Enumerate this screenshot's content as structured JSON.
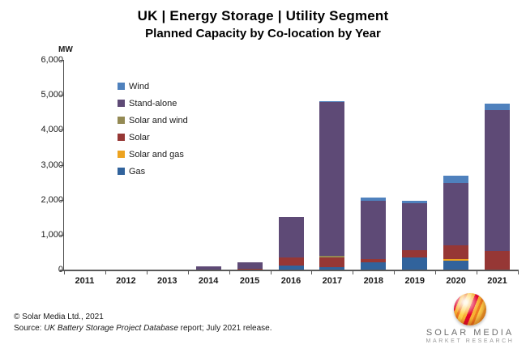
{
  "header": {
    "title": "UK | Energy Storage | Utility Segment",
    "subtitle": "Planned Capacity by Co-location by Year"
  },
  "chart_data": {
    "type": "bar",
    "stacked": true,
    "unit": "MW",
    "grid": false,
    "legend_position": "inside-top-left",
    "categories": [
      "2011",
      "2012",
      "2013",
      "2014",
      "2015",
      "2016",
      "2017",
      "2018",
      "2019",
      "2020",
      "2021"
    ],
    "series": [
      {
        "name": "Gas",
        "color": "#31639C",
        "values": [
          0,
          0,
          0,
          0,
          0,
          120,
          60,
          200,
          345,
          250,
          0
        ]
      },
      {
        "name": "Solar and gas",
        "color": "#EDA320",
        "values": [
          0,
          0,
          0,
          0,
          0,
          0,
          0,
          0,
          0,
          50,
          0
        ]
      },
      {
        "name": "Solar",
        "color": "#963735",
        "values": [
          0,
          0,
          0,
          0,
          35,
          230,
          295,
          95,
          210,
          400,
          540
        ]
      },
      {
        "name": "Solar and wind",
        "color": "#948A54",
        "values": [
          0,
          0,
          0,
          0,
          0,
          0,
          45,
          0,
          0,
          0,
          0
        ]
      },
      {
        "name": "Stand-alone",
        "color": "#5E4A76",
        "values": [
          0,
          0,
          0,
          85,
          175,
          1150,
          4385,
          1680,
          1335,
          1785,
          4020
        ]
      },
      {
        "name": "Wind",
        "color": "#4F81BD",
        "values": [
          0,
          0,
          0,
          0,
          0,
          0,
          30,
          85,
          90,
          195,
          190
        ]
      }
    ],
    "legend_order": [
      "Wind",
      "Stand-alone",
      "Solar and wind",
      "Solar",
      "Solar and gas",
      "Gas"
    ],
    "y_axis": {
      "min": 0,
      "max": 6000,
      "step": 1000,
      "label": "MW",
      "tick_labels": [
        "6,000",
        "5,000",
        "4,000",
        "3,000",
        "2,000",
        "1,000",
        "0"
      ]
    }
  },
  "footer": {
    "copyright": "© Solar Media Ltd., 2021",
    "source_prefix": "Source: ",
    "source_italic": "UK Battery Storage Project Database",
    "source_suffix": " report; July 2021 release."
  },
  "logo": {
    "line1": "SOLAR MEDIA",
    "line2": "MARKET RESEARCH"
  }
}
